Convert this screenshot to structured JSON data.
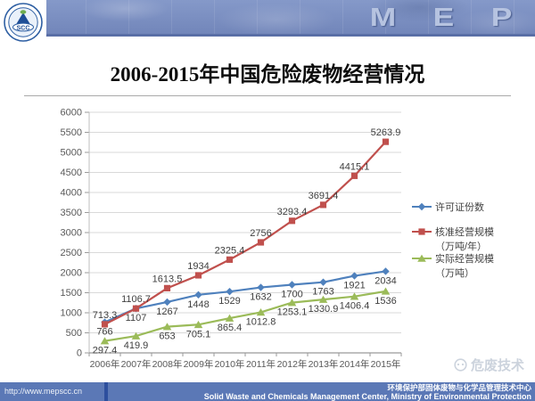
{
  "header": {
    "brand": "MEP",
    "logo_text": "SCC"
  },
  "title": "2006-2015年中国危险废物经营情况",
  "chart_data": {
    "type": "line",
    "title": "2006-2015年中国危险废物经营情况",
    "categories": [
      "2006年",
      "2007年",
      "2008年",
      "2009年",
      "2010年",
      "2011年",
      "2012年",
      "2013年",
      "2014年",
      "2015年"
    ],
    "series": [
      {
        "name": "许可证份数",
        "legend_lines": [
          "许可证份数"
        ],
        "values": [
          766,
          1107,
          1267,
          1448,
          1529,
          1632,
          1700,
          1763,
          1921,
          2034
        ],
        "color": "#4f81bd",
        "marker": "diamond",
        "label_position": "below"
      },
      {
        "name": "核准经营规模（万吨/年）",
        "legend_lines": [
          "核准经营规模",
          "（万吨/年）"
        ],
        "values": [
          713.3,
          1106.7,
          1613.5,
          1934,
          2325.4,
          2756,
          3293.4,
          3691.4,
          4415.1,
          5263.9
        ],
        "color": "#c0504d",
        "marker": "square",
        "label_position": "above"
      },
      {
        "name": "实际经营规模（万吨）",
        "legend_lines": [
          "实际经营规模",
          "（万吨）"
        ],
        "values": [
          297.4,
          419.9,
          653,
          705.1,
          865.4,
          1012.8,
          1253.1,
          1330.9,
          1406.4,
          1536
        ],
        "color": "#9bbb59",
        "marker": "triangle",
        "label_position": "below"
      }
    ],
    "ylim": [
      0,
      6000
    ],
    "ytick_step": 500,
    "grid": true,
    "legend_position": "right",
    "xlabel": "",
    "ylabel": ""
  },
  "watermark": "危废技术",
  "footer": {
    "url": "http://www.mepscc.cn",
    "org_cn": "环境保护部固体废物与化学品管理技术中心",
    "org_en": "Solid Waste and Chemicals Management Center, Ministry of Environmental Protection"
  }
}
